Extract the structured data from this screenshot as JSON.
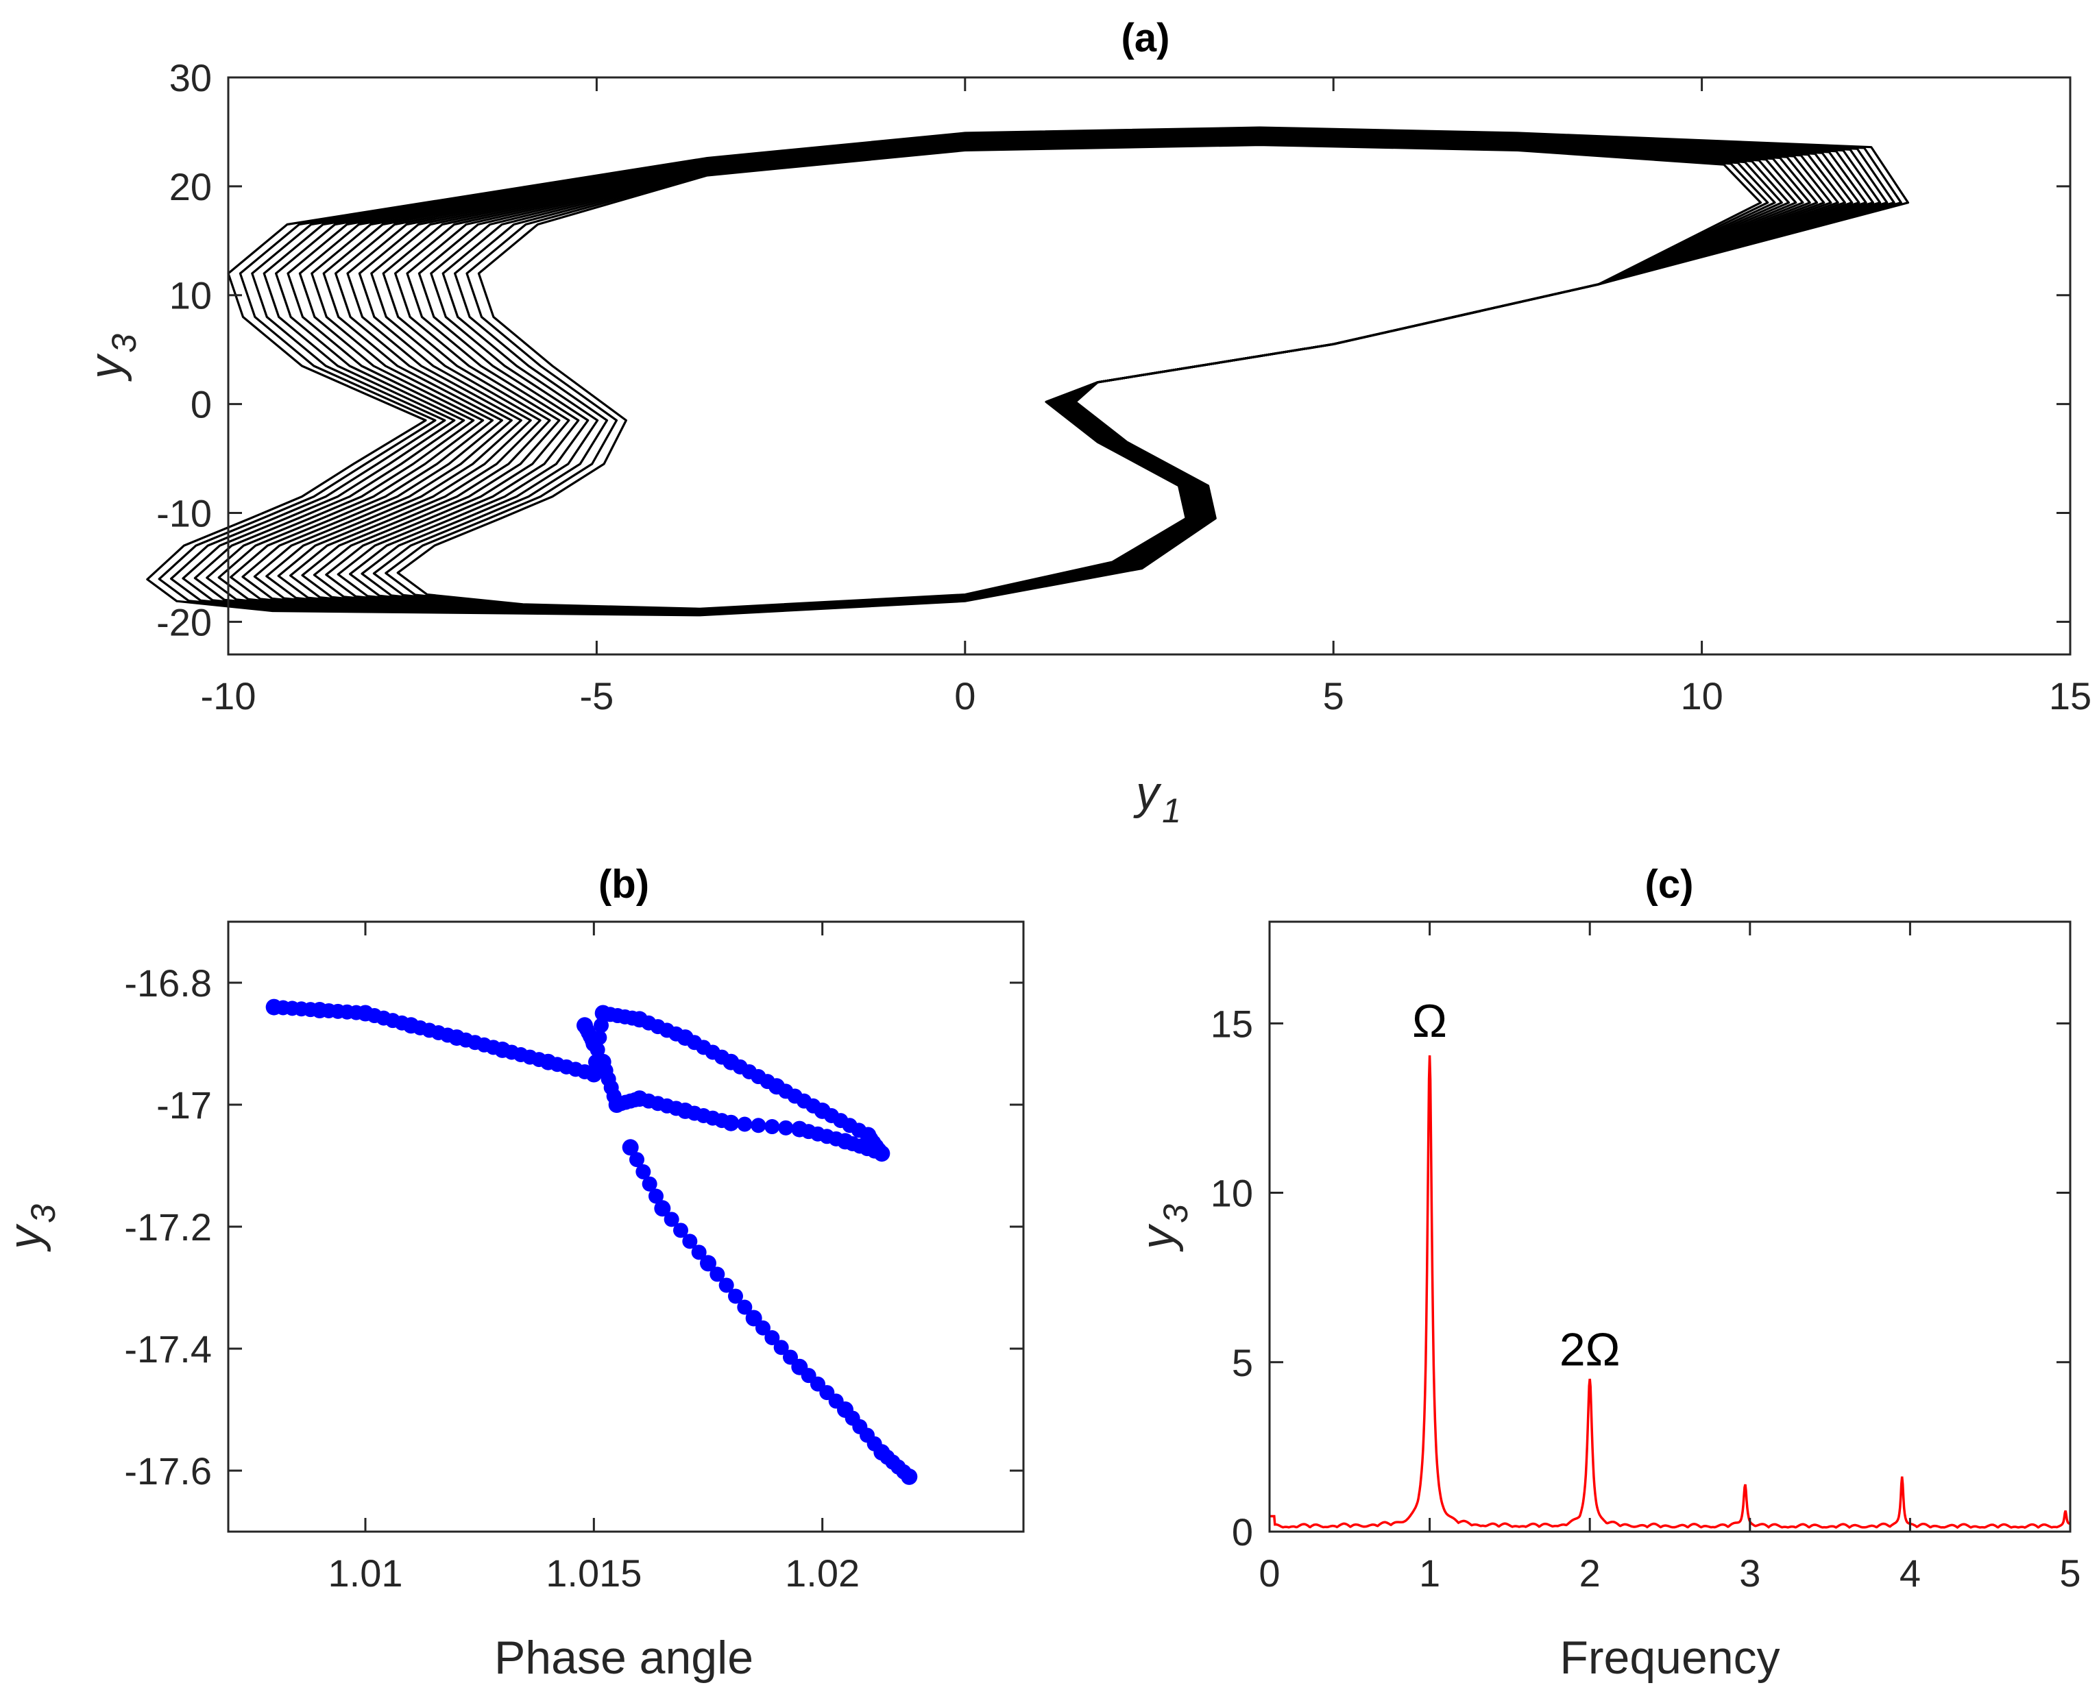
{
  "figure": {
    "colors": {
      "attractor": "#000000",
      "poincare": "#0000ff",
      "spectrum": "#ff0000",
      "axes": "#262626"
    }
  },
  "chart_data": [
    {
      "id": "a",
      "type": "line",
      "title": "(a)",
      "xlabel": {
        "base": "y",
        "sub": "1"
      },
      "ylabel": {
        "base": "y",
        "sub": "3"
      },
      "xlim": [
        -10,
        15
      ],
      "ylim": [
        -23,
        30
      ],
      "xticks": [
        -10,
        -5,
        0,
        5,
        10,
        15
      ],
      "yticks": [
        -20,
        -10,
        0,
        10,
        20,
        30
      ],
      "xtick_labels": [
        "-10",
        "-5",
        "0",
        "5",
        "10",
        "15"
      ],
      "ytick_labels": [
        "-20",
        "-10",
        "0",
        "10",
        "20",
        "30"
      ],
      "loop_count": 22,
      "base_loop": {
        "x": [
          -4.6,
          -4.9,
          -5.6,
          -6.3,
          -7.2,
          -7.7,
          -7.3,
          -6.0,
          -3.6,
          0.0,
          2.0,
          3.0,
          2.9,
          1.8,
          1.1,
          1.8,
          5.0,
          8.6,
          10.8,
          10.3,
          7.5,
          4.0,
          0.0,
          -3.5,
          -5.8,
          -6.6,
          -6.4,
          -5.6,
          -4.6
        ],
        "y": [
          -1.5,
          -5.5,
          -8.5,
          -10.5,
          -13.0,
          -15.5,
          -17.5,
          -18.4,
          -18.8,
          -17.5,
          -14.5,
          -10.5,
          -7.5,
          -3.5,
          0.2,
          2.0,
          5.5,
          11.0,
          18.5,
          22.0,
          23.3,
          23.8,
          23.3,
          21.0,
          16.5,
          12.0,
          8.0,
          3.5,
          -1.5
        ]
      }
    },
    {
      "id": "b",
      "type": "scatter",
      "title": "(b)",
      "xlabel": "Phase angle",
      "ylabel": {
        "base": "y",
        "sub": "3"
      },
      "xlim": [
        1.007,
        1.0244
      ],
      "ylim": [
        -17.7,
        -16.7
      ],
      "xticks": [
        1.01,
        1.015,
        1.02
      ],
      "yticks": [
        -17.6,
        -17.4,
        -17.2,
        -17,
        -16.8
      ],
      "xtick_labels": [
        "1.01",
        "1.015",
        "1.02"
      ],
      "ytick_labels": [
        "-17.6",
        "-17.4",
        "-17.2",
        "-17",
        "-16.8"
      ],
      "x": [
        1.008,
        1.009,
        1.01,
        1.011,
        1.012,
        1.013,
        1.014,
        1.015,
        1.0152,
        1.016,
        1.017,
        1.018,
        1.019,
        1.02,
        1.021,
        1.0213,
        1.0205,
        1.0195,
        1.018,
        1.017,
        1.016,
        1.0155,
        1.0152,
        1.0158,
        1.0165,
        1.0175,
        1.0185,
        1.0195,
        1.0205,
        1.0213,
        1.0219,
        1.015,
        1.0148
      ],
      "y": [
        -16.84,
        -16.845,
        -16.85,
        -16.87,
        -16.89,
        -16.91,
        -16.93,
        -16.95,
        -16.85,
        -16.86,
        -16.89,
        -16.93,
        -16.97,
        -17.01,
        -17.05,
        -17.08,
        -17.06,
        -17.04,
        -17.03,
        -17.01,
        -16.99,
        -17.0,
        -16.93,
        -17.07,
        -17.17,
        -17.26,
        -17.35,
        -17.43,
        -17.5,
        -17.57,
        -17.61,
        -16.9,
        -16.87
      ]
    },
    {
      "id": "c",
      "type": "line",
      "title": "(c)",
      "xlabel": "Frequency",
      "ylabel": {
        "base": "y",
        "sub": "3"
      },
      "xlim": [
        0,
        5
      ],
      "ylim": [
        0,
        18
      ],
      "xticks": [
        0,
        1,
        2,
        3,
        4,
        5
      ],
      "yticks": [
        0,
        5,
        10,
        15
      ],
      "xtick_labels": [
        "0",
        "1",
        "2",
        "3",
        "4",
        "5"
      ],
      "ytick_labels": [
        "0",
        "5",
        "10",
        "15"
      ],
      "peaks": [
        {
          "x": 1.0,
          "y": 13.9,
          "w": 0.018
        },
        {
          "x": 2.0,
          "y": 4.35,
          "w": 0.018
        },
        {
          "x": 2.97,
          "y": 1.25,
          "w": 0.012
        },
        {
          "x": 3.95,
          "y": 1.5,
          "w": 0.01
        },
        {
          "x": 4.97,
          "y": 0.5,
          "w": 0.008
        }
      ],
      "annotations": [
        {
          "text": "Ω",
          "x": 1.0,
          "y": 14.6
        },
        {
          "text": "2Ω",
          "x": 2.0,
          "y": 4.9
        }
      ]
    }
  ]
}
